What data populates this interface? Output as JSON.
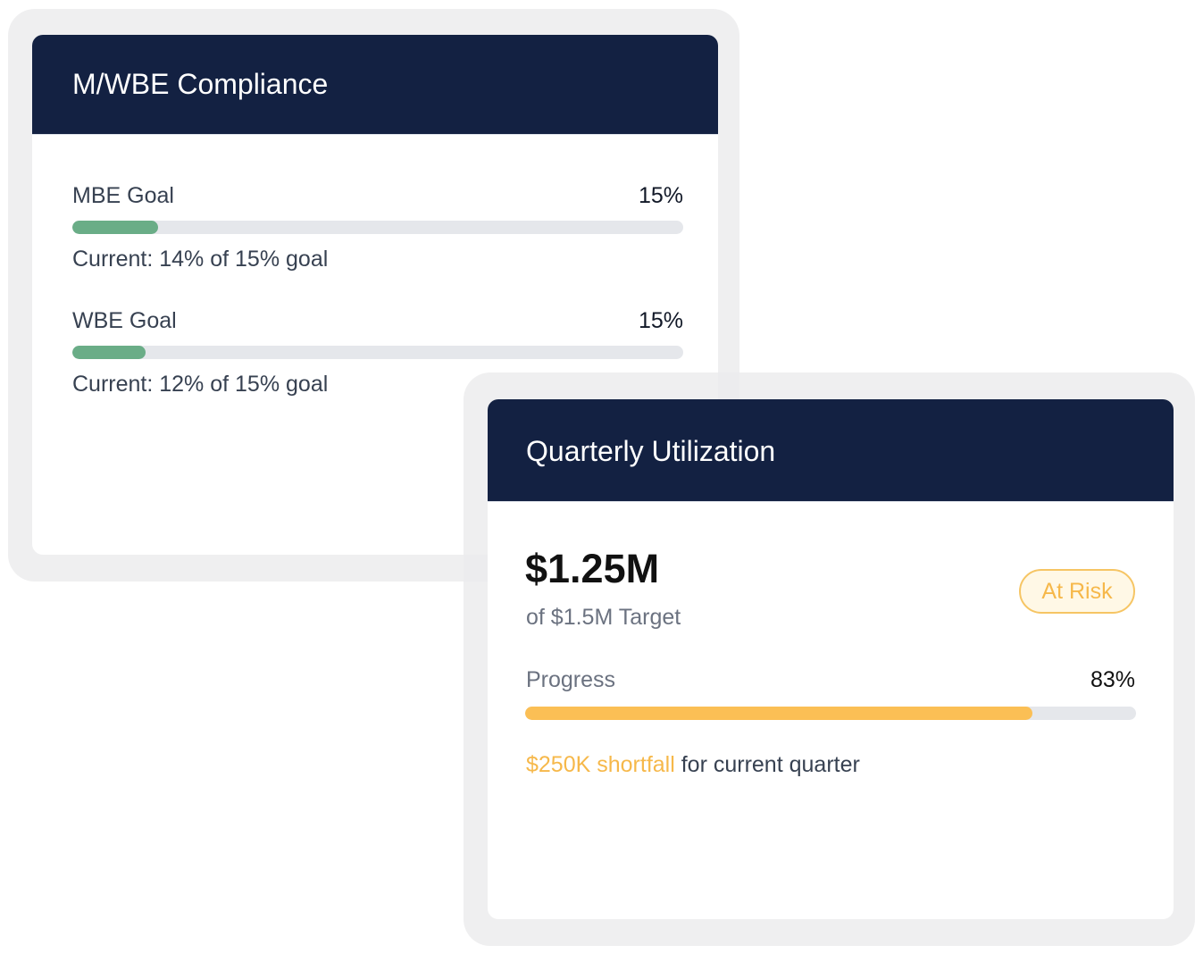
{
  "colors": {
    "header_bg": "#132142",
    "goal_bar": "#6aad87",
    "progress_bar": "#fbbf55",
    "warning": "#f6b84a",
    "track": "#e5e7eb"
  },
  "compliance": {
    "title": "M/WBE Compliance",
    "goals": [
      {
        "label": "MBE Goal",
        "target_text": "15%",
        "current": 14,
        "target": 15,
        "current_text": "Current: 14% of 15% goal"
      },
      {
        "label": "WBE Goal",
        "target_text": "15%",
        "current": 12,
        "target": 15,
        "current_text": "Current: 12% of 15% goal"
      }
    ]
  },
  "utilization": {
    "title": "Quarterly Utilization",
    "amount": "$1.25M",
    "target_text": "of $1.5M Target",
    "status_badge": "At Risk",
    "progress_label": "Progress",
    "progress_text": "83%",
    "progress_value": 83,
    "shortfall_amount": "$250K shortfall",
    "shortfall_suffix": " for current quarter"
  }
}
